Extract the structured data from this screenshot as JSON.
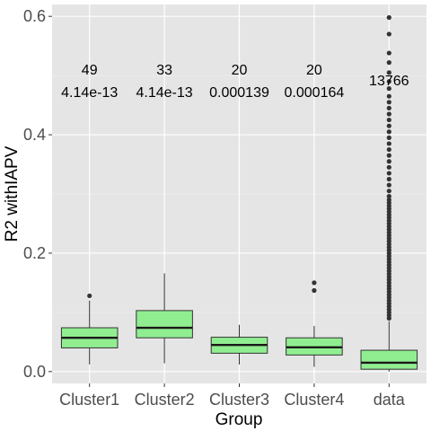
{
  "chart_data": {
    "type": "boxplot",
    "xlabel": "Group",
    "ylabel": "R2 withIAPV",
    "ylim": [
      -0.02,
      0.62
    ],
    "yticks": [
      0.0,
      0.2,
      0.4,
      0.6
    ],
    "ytick_labels": [
      "0.0",
      "0.2",
      "0.4",
      "0.6"
    ],
    "grid": true,
    "colors": {
      "panel": "#e5e5e5",
      "grid_major": "#ffffff",
      "grid_minor": "#f2f2f2",
      "box_fill": "#90ee90",
      "box_stroke": "#333333",
      "outlier": "#333333"
    },
    "categories": [
      "Cluster1",
      "Cluster2",
      "Cluster3",
      "Cluster4",
      "data"
    ],
    "boxes": [
      {
        "label": "Cluster1",
        "whisker_low": 0.012,
        "q1": 0.04,
        "median": 0.057,
        "q3": 0.074,
        "whisker_high": 0.12,
        "outliers": [
          0.128
        ]
      },
      {
        "label": "Cluster2",
        "whisker_low": 0.014,
        "q1": 0.057,
        "median": 0.074,
        "q3": 0.103,
        "whisker_high": 0.166,
        "outliers": []
      },
      {
        "label": "Cluster3",
        "whisker_low": 0.012,
        "q1": 0.031,
        "median": 0.045,
        "q3": 0.058,
        "whisker_high": 0.079,
        "outliers": []
      },
      {
        "label": "Cluster4",
        "whisker_low": 0.008,
        "q1": 0.028,
        "median": 0.041,
        "q3": 0.057,
        "whisker_high": 0.077,
        "outliers": [
          0.137,
          0.15
        ]
      },
      {
        "label": "data",
        "whisker_low": 0.0,
        "q1": 0.004,
        "median": 0.015,
        "q3": 0.036,
        "whisker_high": 0.085,
        "outliers": [
          0.09,
          0.095,
          0.1,
          0.105,
          0.11,
          0.115,
          0.12,
          0.125,
          0.13,
          0.135,
          0.14,
          0.145,
          0.15,
          0.155,
          0.16,
          0.165,
          0.17,
          0.175,
          0.18,
          0.185,
          0.19,
          0.195,
          0.2,
          0.205,
          0.21,
          0.215,
          0.22,
          0.225,
          0.23,
          0.235,
          0.24,
          0.245,
          0.25,
          0.255,
          0.26,
          0.265,
          0.27,
          0.275,
          0.28,
          0.285,
          0.29,
          0.296,
          0.305,
          0.315,
          0.325,
          0.335,
          0.345,
          0.355,
          0.365,
          0.375,
          0.385,
          0.395,
          0.405,
          0.415,
          0.425,
          0.435,
          0.445,
          0.455,
          0.465,
          0.478,
          0.49,
          0.505,
          0.522,
          0.538,
          0.57,
          0.598
        ]
      }
    ],
    "annotations": [
      {
        "category": "Cluster1",
        "count": "49",
        "pvalue": "4.14e-13"
      },
      {
        "category": "Cluster2",
        "count": "33",
        "pvalue": "4.14e-13"
      },
      {
        "category": "Cluster3",
        "count": "20",
        "pvalue": "0.000139"
      },
      {
        "category": "Cluster4",
        "count": "20",
        "pvalue": "0.000164"
      },
      {
        "category": "data",
        "count": "13766",
        "pvalue": ""
      }
    ]
  }
}
